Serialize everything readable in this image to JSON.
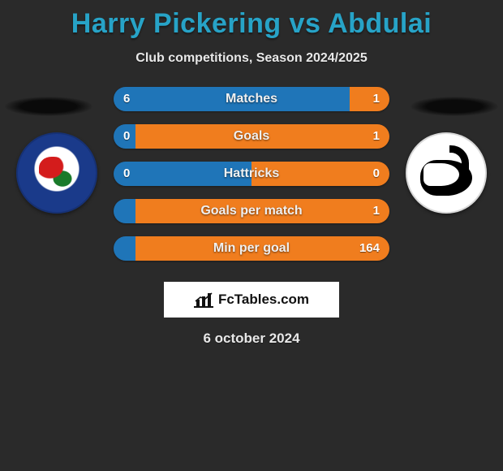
{
  "title_color": "#27a3c7",
  "header": {
    "title": "Harry Pickering vs Abdulai",
    "subtitle": "Club competitions, Season 2024/2025"
  },
  "background_color": "#2a2a2a",
  "colors": {
    "left_bar": "#1f75b8",
    "right_bar": "#f07d1e",
    "label_text": "#f0f0f0",
    "value_text": "#ffffff"
  },
  "bars": {
    "height": 30,
    "gap": 16,
    "border_radius": 15,
    "label_fontsize": 16,
    "value_fontsize": 15
  },
  "rows": [
    {
      "label": "Matches",
      "left": "6",
      "right": "1",
      "split_pct": 85.7
    },
    {
      "label": "Goals",
      "left": "0",
      "right": "1",
      "split_pct": 8.0
    },
    {
      "label": "Hattricks",
      "left": "0",
      "right": "0",
      "split_pct": 50.0
    },
    {
      "label": "Goals per match",
      "left": "",
      "right": "1",
      "split_pct": 8.0
    },
    {
      "label": "Min per goal",
      "left": "",
      "right": "164",
      "split_pct": 8.0
    }
  ],
  "brand": {
    "text": "FcTables.com",
    "box_bg": "#ffffff",
    "text_color": "#111111"
  },
  "date": "6 october 2024"
}
